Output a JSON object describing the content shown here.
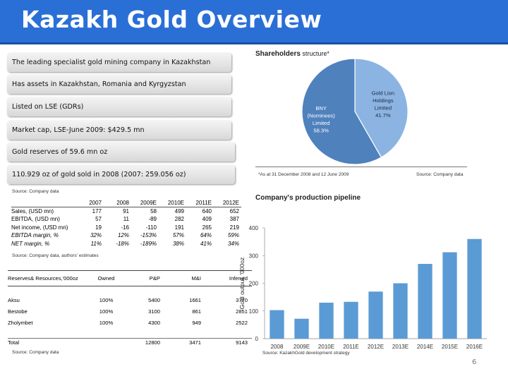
{
  "title": "Kazakh Gold Overview",
  "bullets": [
    "The leading specialist gold mining company in Kazakhstan",
    "Has assets in Kazakhstan, Romania and Kyrgyzstan",
    "Listed on LSE (GDRs)",
    "Market cap, LSE-June 2009: $429.5 mn",
    "Gold reserves of 59.6 mn oz",
    "110.929 oz of gold sold in 2008 (2007: 259.056 oz)"
  ],
  "financials": {
    "source": "Source: Company data",
    "years": [
      "2007",
      "2008",
      "2009E",
      "2010E",
      "2011E",
      "2012E"
    ],
    "rows": [
      {
        "label": "Sales, (USD mn)",
        "values": [
          "177",
          "91",
          "58",
          "499",
          "640",
          "652"
        ]
      },
      {
        "label": "EBITDA, (USD mn)",
        "values": [
          "57",
          "11",
          "-89",
          "282",
          "409",
          "387"
        ]
      },
      {
        "label": "Net income, (USD mn)",
        "values": [
          "19",
          "-16",
          "-110",
          "191",
          "265",
          "219"
        ]
      },
      {
        "label": "EBITDA margin, %",
        "values": [
          "32%",
          "12%",
          "-153%",
          "57%",
          "64%",
          "59%"
        ]
      },
      {
        "label": "NET margin, %",
        "values": [
          "11%",
          "-18%",
          "-189%",
          "38%",
          "41%",
          "34%"
        ]
      }
    ],
    "note": "Source: Company data, authors' estimates"
  },
  "reserves": {
    "headers": [
      "Reserves& Resources,'000oz",
      "Owned",
      "P&P",
      "M&I",
      "Inferred"
    ],
    "rows": [
      {
        "name": "Aksu",
        "values": [
          "100%",
          "5400",
          "1661",
          "3770"
        ]
      },
      {
        "name": "Bestobe",
        "values": [
          "100%",
          "3100",
          "861",
          "2851"
        ]
      },
      {
        "name": "Zholymbet",
        "values": [
          "100%",
          "4300",
          "949",
          "2522"
        ]
      }
    ],
    "total": {
      "name": "Total",
      "values": [
        "",
        "12800",
        "3471",
        "9143"
      ]
    },
    "source": "Source: Company data"
  },
  "shareholders": {
    "title": "Shareholders",
    "title_suffix": " structure*",
    "footnote": "*As at 31 December 2008 and 12 June 2009",
    "source": "Source: Company data",
    "slices": [
      {
        "label_lines": [
          "BNY",
          "(Nominees)",
          "Limited",
          "58.3%"
        ],
        "value": 58.3,
        "color": "#4f81bd"
      },
      {
        "label_lines": [
          "Gold Lion",
          "Holdings",
          "Limited",
          "41.7%"
        ],
        "value": 41.7,
        "color": "#8cb4e2"
      }
    ]
  },
  "pipeline_title": "Company's production pipeline",
  "chart_source": "Source: KazakhGold development strategy",
  "chart_data": {
    "type": "bar",
    "categories": [
      "2008",
      "2009E",
      "2010E",
      "2011E",
      "2012E",
      "2013E",
      "2014E",
      "2015E",
      "2016E"
    ],
    "values": [
      103,
      72,
      130,
      133,
      170,
      200,
      270,
      312,
      360
    ],
    "ylabel": "Gold output, '000oz",
    "ylim": [
      0,
      400
    ],
    "yticks": [
      "0",
      "100",
      "200",
      "300",
      "400"
    ],
    "bar_color": "#5b9bd5"
  },
  "page_number": "6"
}
